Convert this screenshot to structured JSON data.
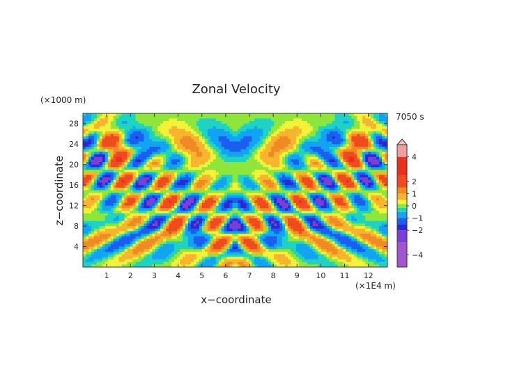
{
  "chart_data": {
    "type": "heatmap",
    "title": "Zonal Velocity",
    "xlabel": "x−coordinate",
    "ylabel": "z−coordinate",
    "x_unit": "(×1E4 m)",
    "y_unit": "(×1000 m)",
    "time_label": "7050 s",
    "xlim": [
      0,
      12.8
    ],
    "ylim": [
      0,
      30
    ],
    "x_ticks": [
      "1",
      "2",
      "3",
      "4",
      "5",
      "6",
      "7",
      "8",
      "9",
      "10",
      "11",
      "12"
    ],
    "y_ticks": [
      "4",
      "8",
      "12",
      "16",
      "20",
      "24",
      "28"
    ],
    "colorbar": {
      "tick_labels": [
        "4",
        "2",
        "1",
        "0",
        "−1",
        "−2",
        "−4"
      ],
      "tick_values": [
        4,
        2,
        1,
        0,
        -1,
        -2,
        -4
      ],
      "range": [
        -5,
        5
      ],
      "colors": [
        {
          "v": -5.0,
          "c": "#a155cf"
        },
        {
          "v": -3.0,
          "c": "#7b3fd6"
        },
        {
          "v": -2.0,
          "c": "#2a2ad1"
        },
        {
          "v": -1.5,
          "c": "#1a5ff0"
        },
        {
          "v": -1.0,
          "c": "#12a3f2"
        },
        {
          "v": -0.5,
          "c": "#1fd3c2"
        },
        {
          "v": -0.15,
          "c": "#8ee63a"
        },
        {
          "v": 0.15,
          "c": "#f2f23a"
        },
        {
          "v": 0.5,
          "c": "#f7b52e"
        },
        {
          "v": 1.0,
          "c": "#f08a24"
        },
        {
          "v": 1.5,
          "c": "#f04a1e"
        },
        {
          "v": 2.5,
          "c": "#e8301e"
        },
        {
          "v": 4.0,
          "c": "#f0a0a0"
        },
        {
          "v": 5.0,
          "c": "#f5c0c0"
        }
      ]
    }
  }
}
